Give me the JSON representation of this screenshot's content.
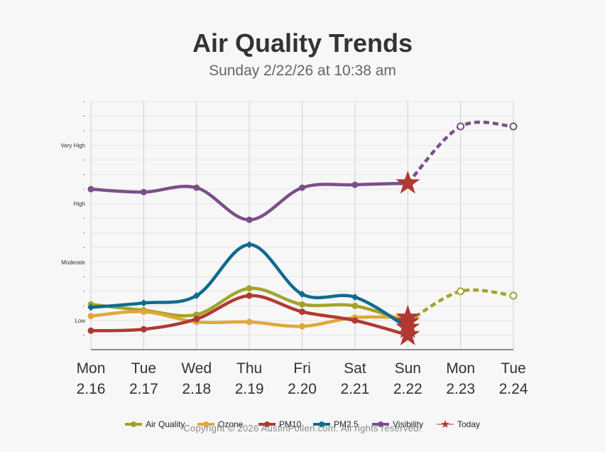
{
  "chart_data": {
    "type": "line",
    "title": "Air Quality Trends",
    "subtitle": "Sunday 2/22/26 at 10:38 am",
    "categories": [
      [
        "Mon",
        "2.16"
      ],
      [
        "Tue",
        "2.17"
      ],
      [
        "Wed",
        "2.18"
      ],
      [
        "Thu",
        "2.19"
      ],
      [
        "Fri",
        "2.20"
      ],
      [
        "Sat",
        "2.21"
      ],
      [
        "Sun",
        "2.22"
      ],
      [
        "Mon",
        "2.23"
      ],
      [
        "Tue",
        "2.24"
      ]
    ],
    "ylim": [
      0,
      17
    ],
    "y_level_labels": [
      {
        "label": "Low",
        "value": 2
      },
      {
        "label": "Moderate",
        "value": 6
      },
      {
        "label": "High",
        "value": 10
      },
      {
        "label": "Very High",
        "value": 14
      }
    ],
    "forecast_start_index": 6,
    "today_index": 6,
    "series": [
      {
        "name": "Air Quality",
        "color": "#a3a32c",
        "values": [
          3.1,
          2.7,
          2.4,
          4.2,
          3.1,
          3.0,
          1.9,
          4.0,
          3.7
        ]
      },
      {
        "name": "Ozone",
        "color": "#e1a63d",
        "values": [
          2.3,
          2.6,
          1.9,
          1.9,
          1.6,
          2.2,
          2.2,
          null,
          null
        ]
      },
      {
        "name": "PM10",
        "color": "#b03a33",
        "values": [
          1.3,
          1.4,
          2.1,
          3.7,
          2.6,
          2.0,
          1.0,
          null,
          null
        ]
      },
      {
        "name": "PM2.5",
        "color": "#0f6b8f",
        "values": [
          2.9,
          3.2,
          3.7,
          7.2,
          3.8,
          3.6,
          1.5,
          null,
          null
        ]
      },
      {
        "name": "Visibility",
        "color": "#7b4f8a",
        "values": [
          11.0,
          10.8,
          11.1,
          8.9,
          11.1,
          11.3,
          11.4,
          15.3,
          15.3
        ]
      }
    ],
    "today_marker": {
      "name": "Today",
      "color": "#b03a33"
    }
  },
  "footer": "Copyright © 2026 AustinPollen.com.  All rights reserved."
}
